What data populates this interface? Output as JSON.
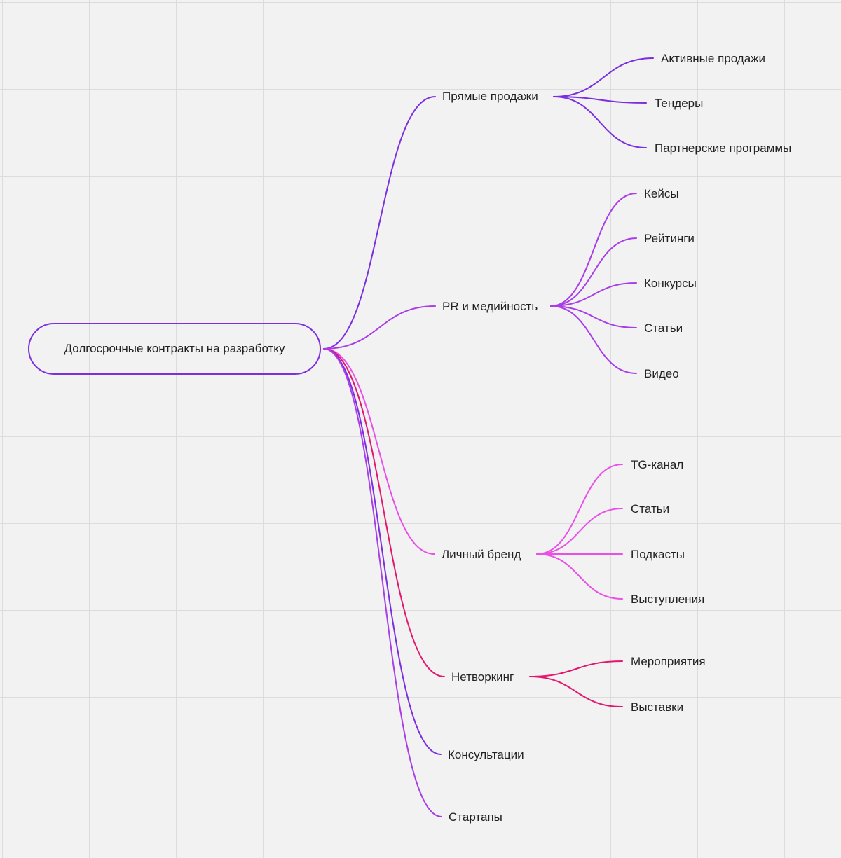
{
  "colors": {
    "violet": "#7b2fe0",
    "purple": "#a93ee8",
    "pink": "#ea4fe8",
    "magenta": "#e3176e",
    "root_border": "#7b2fe0"
  },
  "mindmap": {
    "root": {
      "label": "Долгосрочные контракты на разработку"
    },
    "branches": [
      {
        "label": "Прямые продажи",
        "color": "violet",
        "children": [
          "Активные продажи",
          "Тендеры",
          "Партнерские программы"
        ]
      },
      {
        "label": "PR и медийность",
        "color": "purple",
        "children": [
          "Кейсы",
          "Рейтинги",
          "Конкурсы",
          "Статьи",
          "Видео"
        ]
      },
      {
        "label": "Личный бренд",
        "color": "pink",
        "children": [
          "TG-канал",
          "Статьи",
          "Подкасты",
          "Выступления"
        ]
      },
      {
        "label": "Нетворкинг",
        "color": "magenta",
        "children": [
          "Мероприятия",
          "Выставки"
        ]
      },
      {
        "label": "Консультации",
        "color": "violet",
        "children": []
      },
      {
        "label": "Стартапы",
        "color": "purple",
        "children": []
      }
    ]
  }
}
